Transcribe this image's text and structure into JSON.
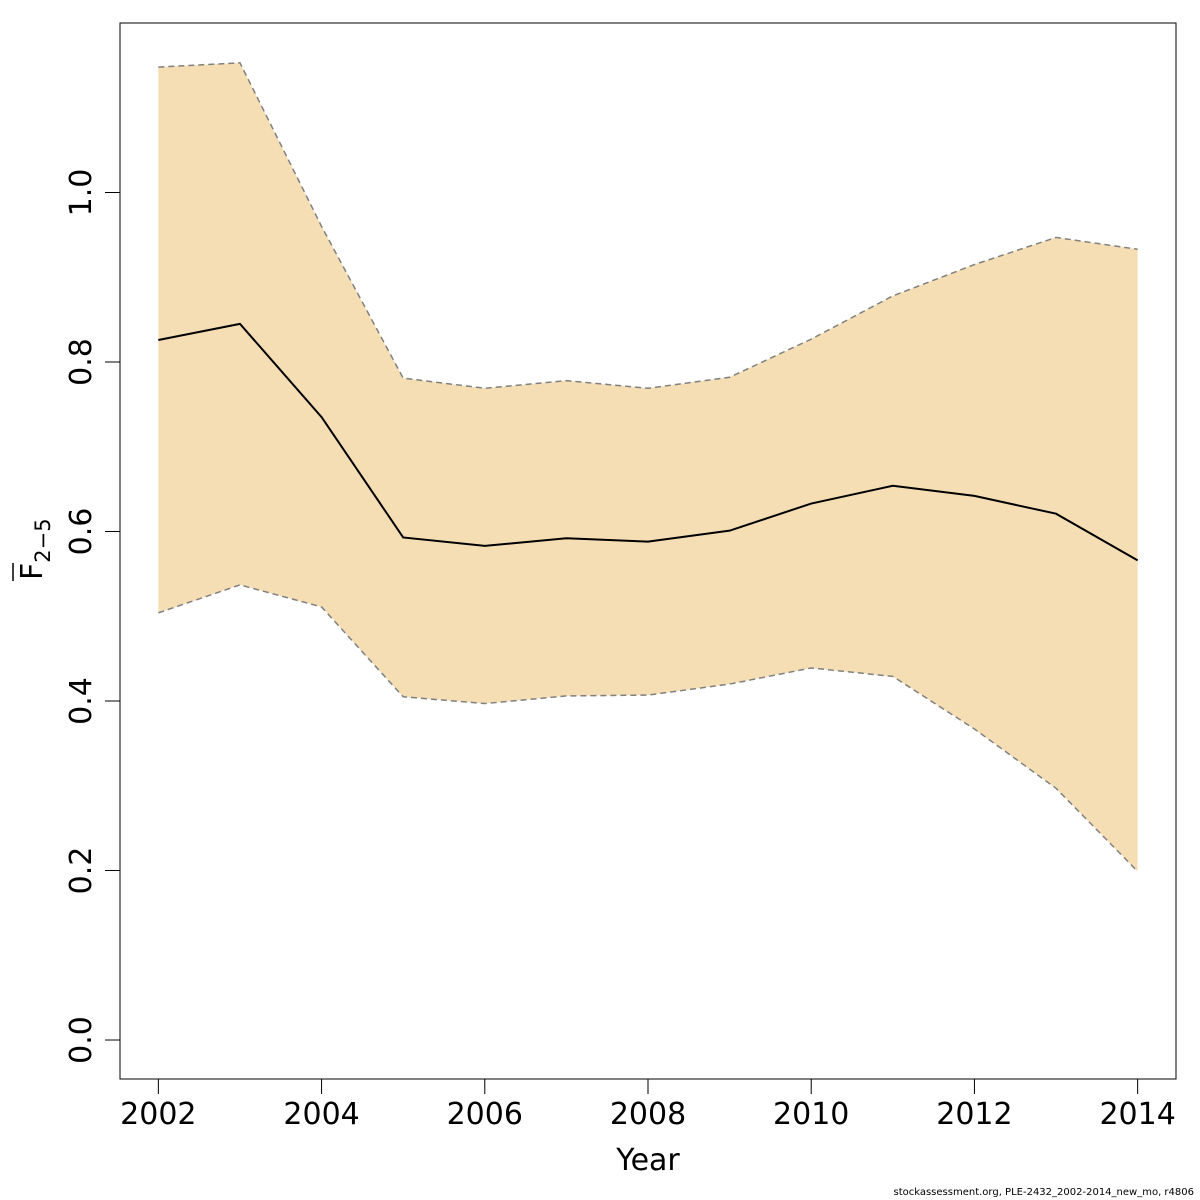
{
  "chart_data": {
    "type": "line",
    "title": "",
    "xlabel": "Year",
    "ylabel_main": "F",
    "ylabel_sub": "2−5",
    "x": [
      2002,
      2003,
      2004,
      2005,
      2006,
      2007,
      2008,
      2009,
      2010,
      2011,
      2012,
      2013,
      2014
    ],
    "series": [
      {
        "role": "estimate",
        "values": [
          0.826,
          0.845,
          0.735,
          0.593,
          0.583,
          0.592,
          0.588,
          0.601,
          0.633,
          0.654,
          0.642,
          0.621,
          0.566
        ]
      },
      {
        "role": "upper",
        "values": [
          1.148,
          1.153,
          0.96,
          0.781,
          0.769,
          0.778,
          0.769,
          0.782,
          0.827,
          0.878,
          0.915,
          0.947,
          0.933
        ]
      },
      {
        "role": "lower",
        "values": [
          0.504,
          0.537,
          0.511,
          0.405,
          0.397,
          0.406,
          0.407,
          0.42,
          0.439,
          0.429,
          0.367,
          0.297,
          0.199
        ]
      }
    ],
    "xlim": [
      2001.53,
      2014.47
    ],
    "ylim": [
      -0.046,
      1.2
    ],
    "x_ticks": [
      "2002",
      "2004",
      "2006",
      "2008",
      "2010",
      "2012",
      "2014"
    ],
    "y_ticks": [
      "0.0",
      "0.2",
      "0.4",
      "0.6",
      "0.8",
      "1.0"
    ],
    "grid": false,
    "band_color": "#F5DEB3",
    "line_color": "#000000",
    "bound_line_color": "#808080"
  },
  "footer": "stockassessment.org, PLE-2432_2002-2014_new_mo, r4806"
}
